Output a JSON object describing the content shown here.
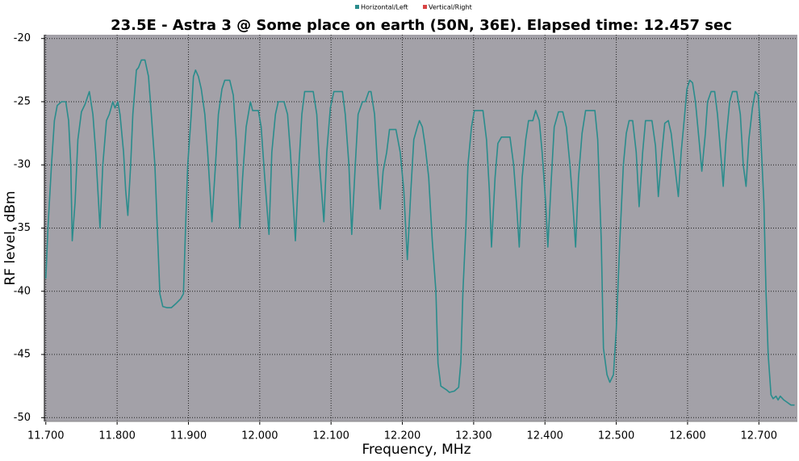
{
  "chart_data": {
    "type": "line",
    "title": "23.5E - Astra 3 @ Some place on earth (50N, 36E). Elapsed time: 12.457 sec",
    "x_label": "Frequency, MHz",
    "y_label": "RF level, dBm",
    "grid": true,
    "xlim": [
      11.698,
      12.754
    ],
    "ylim": [
      -50.3,
      -19.7
    ],
    "xticks": [
      {
        "value": 11.7,
        "label": "11.700"
      },
      {
        "value": 11.8,
        "label": "11.800"
      },
      {
        "value": 11.9,
        "label": "11.900"
      },
      {
        "value": 12.0,
        "label": "12.000"
      },
      {
        "value": 12.1,
        "label": "12.100"
      },
      {
        "value": 12.2,
        "label": "12.200"
      },
      {
        "value": 12.3,
        "label": "12.300"
      },
      {
        "value": 12.4,
        "label": "12.400"
      },
      {
        "value": 12.5,
        "label": "12.500"
      },
      {
        "value": 12.6,
        "label": "12.600"
      },
      {
        "value": 12.7,
        "label": "12.700"
      }
    ],
    "yticks": [
      -20,
      -25,
      -30,
      -35,
      -40,
      -45,
      -50
    ],
    "x": [
      11.7,
      11.703,
      11.708,
      11.712,
      11.716,
      11.722,
      11.728,
      11.732,
      11.735,
      11.737,
      11.741,
      11.745,
      11.75,
      11.755,
      11.761,
      11.766,
      11.77,
      11.776,
      11.78,
      11.785,
      11.789,
      11.794,
      11.797,
      11.801,
      11.804,
      11.809,
      11.812,
      11.815,
      11.819,
      11.822,
      11.827,
      11.83,
      11.834,
      11.839,
      11.844,
      11.848,
      11.853,
      11.857,
      11.86,
      11.864,
      11.87,
      11.876,
      11.882,
      11.889,
      11.893,
      11.896,
      11.899,
      11.904,
      11.907,
      11.91,
      11.914,
      11.918,
      11.923,
      11.927,
      11.933,
      11.938,
      11.942,
      11.947,
      11.951,
      11.958,
      11.963,
      11.967,
      11.972,
      11.976,
      11.981,
      11.987,
      11.99,
      11.998,
      12.002,
      12.007,
      12.013,
      12.017,
      12.022,
      12.026,
      12.034,
      12.039,
      12.043,
      12.05,
      12.055,
      12.059,
      12.063,
      12.075,
      12.08,
      12.084,
      12.09,
      12.094,
      12.099,
      12.104,
      12.116,
      12.12,
      12.125,
      12.129,
      12.134,
      12.138,
      12.144,
      12.148,
      12.153,
      12.156,
      12.161,
      12.165,
      12.169,
      12.173,
      12.178,
      12.182,
      12.191,
      12.197,
      12.202,
      12.207,
      12.212,
      12.216,
      12.221,
      12.224,
      12.228,
      12.232,
      12.237,
      12.242,
      12.247,
      12.25,
      12.254,
      12.262,
      12.266,
      12.273,
      12.279,
      12.282,
      12.285,
      12.289,
      12.292,
      12.297,
      12.301,
      12.313,
      12.318,
      12.322,
      12.325,
      12.33,
      12.334,
      12.339,
      12.351,
      12.356,
      12.36,
      12.364,
      12.368,
      12.373,
      12.377,
      12.383,
      12.387,
      12.392,
      12.396,
      12.401,
      12.404,
      12.409,
      12.413,
      12.419,
      12.425,
      12.43,
      12.435,
      12.439,
      12.443,
      12.447,
      12.452,
      12.457,
      12.47,
      12.474,
      12.479,
      12.482,
      12.487,
      12.491,
      12.496,
      12.5,
      12.505,
      12.51,
      12.514,
      12.518,
      12.523,
      12.528,
      12.532,
      12.537,
      12.541,
      12.55,
      12.555,
      12.559,
      12.564,
      12.568,
      12.573,
      12.577,
      12.582,
      12.587,
      12.591,
      12.596,
      12.599,
      12.603,
      12.607,
      12.611,
      12.616,
      12.62,
      12.625,
      12.628,
      12.633,
      12.638,
      12.642,
      12.647,
      12.65,
      12.654,
      12.659,
      12.663,
      12.669,
      12.674,
      12.678,
      12.682,
      12.686,
      12.691,
      12.695,
      12.699,
      12.702,
      12.707,
      12.71,
      12.713,
      12.717,
      12.72,
      12.724,
      12.727,
      12.73,
      12.735,
      12.74,
      12.745,
      12.75
    ],
    "series": [
      {
        "name": "Horizontal/Left",
        "color": "#2a8c8c",
        "values": [
          -39,
          -35,
          -30,
          -26.5,
          -25.3,
          -25,
          -25,
          -26.5,
          -30,
          -36,
          -33,
          -28,
          -25.8,
          -25.2,
          -24.2,
          -26,
          -29,
          -35,
          -30,
          -26.5,
          -26,
          -25,
          -25.5,
          -25,
          -26,
          -29,
          -32,
          -34,
          -30,
          -26,
          -22.5,
          -22.3,
          -21.7,
          -21.7,
          -23,
          -26,
          -30,
          -36,
          -40.2,
          -41.2,
          -41.3,
          -41.3,
          -41,
          -40.6,
          -40.2,
          -35,
          -30,
          -26,
          -23,
          -22.5,
          -23,
          -24,
          -26,
          -29,
          -34.5,
          -30,
          -26,
          -24,
          -23.3,
          -23.3,
          -24.5,
          -28,
          -35,
          -31,
          -27,
          -25,
          -25.7,
          -25.7,
          -27,
          -31,
          -35.5,
          -29,
          -26,
          -25,
          -25,
          -26,
          -29,
          -36,
          -30,
          -26,
          -24.2,
          -24.2,
          -26,
          -30,
          -34.5,
          -29,
          -25.5,
          -24.2,
          -24.2,
          -26,
          -30,
          -35.5,
          -30,
          -26,
          -25,
          -25,
          -24.2,
          -24.2,
          -26,
          -30,
          -33.5,
          -30.5,
          -29,
          -27.2,
          -27.2,
          -29,
          -32,
          -37.5,
          -32,
          -28,
          -27,
          -26.5,
          -27,
          -28.5,
          -31,
          -36,
          -40,
          -45.7,
          -47.5,
          -47.8,
          -48,
          -47.9,
          -47.6,
          -45.6,
          -40,
          -35,
          -30,
          -27,
          -25.7,
          -25.7,
          -28,
          -32,
          -36.5,
          -31,
          -28.3,
          -27.8,
          -27.8,
          -30,
          -33,
          -36.5,
          -31,
          -28,
          -26.5,
          -26.5,
          -25.7,
          -26.5,
          -29,
          -33,
          -36.5,
          -31,
          -27,
          -25.8,
          -25.8,
          -27,
          -30,
          -33,
          -36.5,
          -31,
          -27.5,
          -25.7,
          -25.7,
          -28,
          -36,
          -44.5,
          -46.6,
          -47.2,
          -46.6,
          -43,
          -36,
          -30,
          -27.5,
          -26.5,
          -26.5,
          -29,
          -33.3,
          -29,
          -26.5,
          -26.5,
          -28.5,
          -32.5,
          -29,
          -26.7,
          -26.5,
          -27.5,
          -30,
          -32.5,
          -29,
          -26,
          -24,
          -23.3,
          -23.5,
          -25,
          -28,
          -30.5,
          -27.5,
          -25,
          -24.2,
          -24.2,
          -26,
          -29.5,
          -31.7,
          -28,
          -25,
          -24.2,
          -24.2,
          -26,
          -30,
          -31.7,
          -28,
          -25.5,
          -24.2,
          -24.5,
          -27,
          -33,
          -40,
          -45,
          -48.2,
          -48.5,
          -48.3,
          -48.6,
          -48.3,
          -48.6,
          -48.8,
          -49,
          -49
        ]
      },
      {
        "name": "Vertical/Right",
        "color": "#d94444",
        "values": [
          null,
          null,
          null,
          null,
          null,
          null,
          null,
          null,
          null,
          null,
          null,
          null,
          null,
          null,
          null,
          null,
          null,
          null,
          null,
          null,
          null,
          null,
          null,
          null,
          null,
          null,
          null,
          null,
          null,
          null,
          null,
          null,
          null,
          null,
          null,
          null,
          null,
          null,
          null,
          null,
          null,
          null,
          null,
          null,
          null,
          null,
          null,
          null,
          null,
          null,
          null,
          null,
          null,
          null,
          null,
          null,
          null,
          null,
          null,
          null,
          null,
          null,
          null,
          null,
          null,
          null,
          null,
          null,
          null,
          null,
          null,
          null,
          null,
          null,
          null,
          null,
          null,
          null,
          null,
          null,
          null,
          null,
          null,
          null,
          null,
          null,
          null,
          null,
          null,
          null,
          null,
          null,
          null,
          null,
          null,
          null,
          null,
          null,
          null,
          null,
          null,
          null,
          null,
          null,
          null,
          null,
          null,
          null,
          null,
          null,
          null,
          null,
          null,
          null,
          null,
          null,
          null,
          null,
          null,
          null,
          null,
          null,
          null,
          null,
          null,
          null,
          null,
          null,
          null,
          null,
          null,
          null,
          null,
          null,
          null,
          null,
          null,
          null,
          null,
          null,
          null,
          null,
          null,
          null,
          null,
          null,
          null,
          null,
          null,
          null,
          null,
          null,
          null,
          null,
          null,
          null,
          null,
          null,
          null,
          null,
          null,
          null,
          null,
          null,
          null,
          null,
          null,
          null,
          null,
          null,
          null,
          null,
          null,
          null,
          null,
          null,
          null,
          null,
          null,
          null,
          null,
          null,
          null,
          null,
          null,
          null,
          null,
          null,
          null,
          null,
          null,
          null,
          null,
          null,
          null,
          null,
          null,
          null,
          null,
          null,
          null,
          null,
          null,
          null,
          null,
          null,
          null,
          null,
          null,
          null,
          null,
          null,
          null,
          null,
          null,
          null,
          null,
          null,
          null,
          null,
          null,
          null,
          null,
          null,
          null
        ]
      }
    ]
  }
}
